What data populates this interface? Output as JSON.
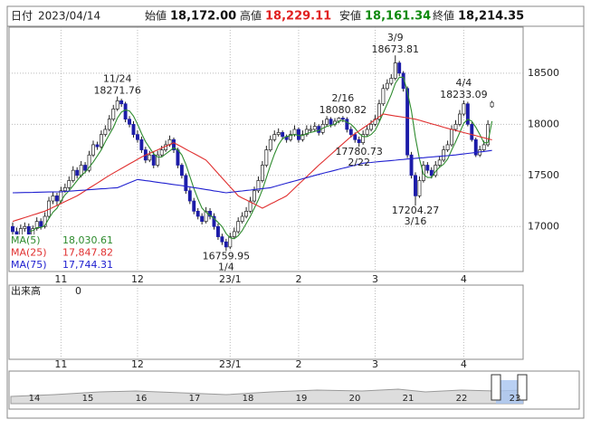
{
  "header": {
    "date_label": "日付",
    "date": "2023/04/14",
    "fields": [
      {
        "label": "始値",
        "value": "18,172.00",
        "color": "#111111"
      },
      {
        "label": "高値",
        "value": "18,229.11",
        "color": "#e02020"
      },
      {
        "label": "安値",
        "value": "18,161.34",
        "color": "#108a10"
      },
      {
        "label": "終値",
        "value": "18,214.35",
        "color": "#111111"
      }
    ]
  },
  "chart_data": {
    "type": "candlestick",
    "ylim": [
      16560,
      18950
    ],
    "yticks": [
      17000,
      17500,
      18000,
      18500
    ],
    "grid": true,
    "up_color": "#ffffff",
    "down_color": "#1c1ca8",
    "categories": [
      null,
      null,
      null,
      null,
      null,
      null,
      null,
      null,
      null,
      null,
      null,
      null,
      "11",
      null,
      null,
      null,
      null,
      null,
      null,
      null,
      null,
      null,
      null,
      null,
      null,
      null,
      null,
      null,
      null,
      null,
      null,
      "12",
      null,
      null,
      null,
      null,
      null,
      null,
      null,
      null,
      null,
      null,
      null,
      null,
      null,
      null,
      null,
      null,
      null,
      null,
      null,
      null,
      null,
      null,
      "23/1",
      null,
      null,
      null,
      null,
      null,
      null,
      null,
      null,
      null,
      null,
      null,
      null,
      null,
      null,
      null,
      null,
      "2",
      null,
      null,
      null,
      null,
      null,
      null,
      null,
      null,
      null,
      null,
      null,
      null,
      null,
      null,
      null,
      null,
      null,
      null,
      "3",
      null,
      null,
      null,
      null,
      null,
      null,
      null,
      null,
      null,
      null,
      null,
      null,
      null,
      null,
      null,
      null,
      null,
      null,
      null,
      null,
      null,
      "4",
      null,
      null,
      null,
      null,
      null,
      null,
      null
    ],
    "ohlc": [
      [
        17000,
        17040,
        16910,
        16950
      ],
      [
        16950,
        16990,
        16860,
        16900
      ],
      [
        16900,
        17020,
        16870,
        16980
      ],
      [
        16980,
        17040,
        16950,
        17000
      ],
      [
        17000,
        17030,
        16890,
        16920
      ],
      [
        16920,
        17010,
        16890,
        16980
      ],
      [
        16980,
        17090,
        16960,
        17050
      ],
      [
        17050,
        17080,
        16970,
        17000
      ],
      [
        17000,
        17140,
        16980,
        17100
      ],
      [
        17100,
        17290,
        17080,
        17250
      ],
      [
        17250,
        17340,
        17220,
        17300
      ],
      [
        17300,
        17330,
        17210,
        17250
      ],
      [
        17250,
        17390,
        17230,
        17350
      ],
      [
        17350,
        17420,
        17330,
        17380
      ],
      [
        17380,
        17490,
        17360,
        17450
      ],
      [
        17450,
        17590,
        17430,
        17550
      ],
      [
        17550,
        17580,
        17470,
        17500
      ],
      [
        17500,
        17640,
        17480,
        17600
      ],
      [
        17600,
        17630,
        17520,
        17550
      ],
      [
        17550,
        17740,
        17530,
        17700
      ],
      [
        17700,
        17840,
        17680,
        17800
      ],
      [
        17800,
        17830,
        17750,
        17780
      ],
      [
        17780,
        17940,
        17760,
        17900
      ],
      [
        17900,
        17990,
        17880,
        17950
      ],
      [
        17950,
        18090,
        17930,
        18050
      ],
      [
        18050,
        18190,
        18030,
        18150
      ],
      [
        18150,
        18271.76,
        18130,
        18230
      ],
      [
        18230,
        18250,
        18170,
        18200
      ],
      [
        18200,
        18220,
        18020,
        18050
      ],
      [
        18050,
        18080,
        17970,
        18000
      ],
      [
        18000,
        18030,
        17870,
        17900
      ],
      [
        17900,
        17940,
        17820,
        17850
      ],
      [
        17850,
        17880,
        17720,
        17750
      ],
      [
        17750,
        17780,
        17620,
        17650
      ],
      [
        17650,
        17740,
        17630,
        17700
      ],
      [
        17700,
        17730,
        17570,
        17600
      ],
      [
        17600,
        17740,
        17580,
        17700
      ],
      [
        17700,
        17790,
        17680,
        17750
      ],
      [
        17750,
        17840,
        17730,
        17800
      ],
      [
        17800,
        17890,
        17780,
        17850
      ],
      [
        17850,
        17870,
        17720,
        17750
      ],
      [
        17750,
        17770,
        17570,
        17600
      ],
      [
        17600,
        17620,
        17470,
        17500
      ],
      [
        17500,
        17520,
        17320,
        17350
      ],
      [
        17350,
        17380,
        17220,
        17250
      ],
      [
        17250,
        17280,
        17120,
        17150
      ],
      [
        17150,
        17180,
        17070,
        17100
      ],
      [
        17100,
        17130,
        17020,
        17050
      ],
      [
        17050,
        17190,
        17030,
        17150
      ],
      [
        17150,
        17180,
        17070,
        17100
      ],
      [
        17100,
        17130,
        16970,
        17000
      ],
      [
        17000,
        17030,
        16870,
        16900
      ],
      [
        16900,
        16930,
        16820,
        16850
      ],
      [
        16850,
        16880,
        16759.95,
        16800
      ],
      [
        16800,
        16940,
        16780,
        16900
      ],
      [
        16900,
        16990,
        16880,
        16950
      ],
      [
        16950,
        17090,
        16930,
        17050
      ],
      [
        17050,
        17140,
        17030,
        17100
      ],
      [
        17100,
        17190,
        17080,
        17150
      ],
      [
        17150,
        17290,
        17130,
        17250
      ],
      [
        17250,
        17390,
        17230,
        17350
      ],
      [
        17350,
        17490,
        17330,
        17450
      ],
      [
        17450,
        17640,
        17430,
        17600
      ],
      [
        17600,
        17790,
        17580,
        17750
      ],
      [
        17750,
        17890,
        17730,
        17850
      ],
      [
        17850,
        17940,
        17830,
        17900
      ],
      [
        17900,
        17960,
        17880,
        17920
      ],
      [
        17920,
        17940,
        17850,
        17880
      ],
      [
        17880,
        17900,
        17820,
        17850
      ],
      [
        17850,
        17940,
        17830,
        17900
      ],
      [
        17900,
        17990,
        17880,
        17950
      ],
      [
        17950,
        17970,
        17820,
        17850
      ],
      [
        17850,
        17940,
        17830,
        17900
      ],
      [
        17900,
        17990,
        17880,
        17950
      ],
      [
        17940,
        17990,
        17920,
        17950
      ],
      [
        17950,
        18020,
        17930,
        17980
      ],
      [
        17980,
        18000,
        17890,
        17920
      ],
      [
        17920,
        18040,
        17900,
        18000
      ],
      [
        18000,
        18080,
        17980,
        18050
      ],
      [
        18050,
        18070,
        17970,
        18000
      ],
      [
        18000,
        18060,
        17980,
        18030
      ],
      [
        18030,
        18070,
        18010,
        18060
      ],
      [
        18060,
        18080.82,
        18020,
        18050
      ],
      [
        18050,
        18070,
        17920,
        17950
      ],
      [
        17950,
        17980,
        17870,
        17900
      ],
      [
        17900,
        17920,
        17820,
        17850
      ],
      [
        17850,
        17880,
        17780.73,
        17820
      ],
      [
        17820,
        17940,
        17800,
        17900
      ],
      [
        17900,
        17990,
        17880,
        17950
      ],
      [
        17950,
        18040,
        17930,
        18000
      ],
      [
        18000,
        18090,
        17980,
        18050
      ],
      [
        18050,
        18240,
        18030,
        18200
      ],
      [
        18200,
        18390,
        18180,
        18350
      ],
      [
        18350,
        18440,
        18330,
        18400
      ],
      [
        18400,
        18490,
        18380,
        18450
      ],
      [
        18450,
        18673.81,
        18430,
        18600
      ],
      [
        18600,
        18620,
        18470,
        18500
      ],
      [
        18500,
        18520,
        18320,
        18350
      ],
      [
        18350,
        18370,
        17670,
        17700
      ],
      [
        17700,
        17730,
        17470,
        17500
      ],
      [
        17500,
        17530,
        17204.27,
        17300
      ],
      [
        17300,
        17490,
        17280,
        17450
      ],
      [
        17450,
        17640,
        17430,
        17600
      ],
      [
        17600,
        17630,
        17520,
        17550
      ],
      [
        17550,
        17580,
        17470,
        17500
      ],
      [
        17500,
        17640,
        17480,
        17600
      ],
      [
        17600,
        17690,
        17580,
        17650
      ],
      [
        17650,
        17790,
        17630,
        17750
      ],
      [
        17750,
        17840,
        17730,
        17800
      ],
      [
        17800,
        17990,
        17780,
        17950
      ],
      [
        17950,
        18040,
        17930,
        18000
      ],
      [
        18000,
        18140,
        17980,
        18100
      ],
      [
        18100,
        18233.09,
        18080,
        18200
      ],
      [
        18200,
        18220,
        17980,
        18000
      ],
      [
        18000,
        18020,
        17830,
        17850
      ],
      [
        17850,
        17870,
        17680,
        17700
      ],
      [
        17700,
        17790,
        17680,
        17750
      ],
      [
        17750,
        17840,
        17730,
        17800
      ],
      [
        17800,
        18040,
        17780,
        18000
      ],
      [
        18172,
        18229.11,
        18161.34,
        18214.35
      ]
    ],
    "series": [
      {
        "name": "MA(5)",
        "color": "#2e8b2e",
        "last_label": "18,030.61",
        "values": [
          null,
          null,
          null,
          null,
          16950,
          16960,
          16990,
          16990,
          17010,
          17080,
          17140,
          17180,
          17250,
          17310,
          17350,
          17400,
          17450,
          17500,
          17530,
          17580,
          17630,
          17690,
          17750,
          17830,
          17900,
          17970,
          18060,
          18120,
          18140,
          18130,
          18080,
          18000,
          17910,
          17830,
          17770,
          17710,
          17680,
          17680,
          17710,
          17740,
          17770,
          17750,
          17700,
          17610,
          17490,
          17370,
          17270,
          17180,
          17140,
          17110,
          17080,
          17040,
          17000,
          16930,
          16890,
          16880,
          16910,
          16960,
          17030,
          17100,
          17180,
          17260,
          17360,
          17480,
          17600,
          17710,
          17800,
          17860,
          17880,
          17890,
          17900,
          17890,
          17890,
          17910,
          17920,
          17930,
          17940,
          17960,
          17980,
          17990,
          18000,
          18030,
          18040,
          18020,
          18000,
          17960,
          17910,
          17880,
          17880,
          17900,
          17940,
          18020,
          18110,
          18200,
          18290,
          18400,
          18460,
          18460,
          18320,
          18130,
          17870,
          17660,
          17510,
          17480,
          17480,
          17540,
          17580,
          17610,
          17660,
          17750,
          17830,
          17920,
          18010,
          18050,
          18030,
          17970,
          17900,
          17820,
          17820,
          18030.61
        ]
      },
      {
        "name": "MA(25)",
        "color": "#e03030",
        "last_label": "17,847.82",
        "values": [
          17050,
          17063,
          17075,
          17088,
          17100,
          17113,
          17125,
          17138,
          17150,
          17169,
          17188,
          17206,
          17225,
          17244,
          17263,
          17281,
          17300,
          17325,
          17350,
          17375,
          17400,
          17425,
          17450,
          17475,
          17500,
          17523,
          17545,
          17568,
          17590,
          17613,
          17635,
          17658,
          17680,
          17698,
          17715,
          17733,
          17750,
          17768,
          17785,
          17803,
          17820,
          17799,
          17778,
          17756,
          17735,
          17714,
          17693,
          17671,
          17650,
          17606,
          17563,
          17519,
          17475,
          17431,
          17388,
          17344,
          17300,
          17280,
          17260,
          17240,
          17220,
          17200,
          17180,
          17200,
          17220,
          17240,
          17260,
          17280,
          17300,
          17338,
          17375,
          17413,
          17450,
          17488,
          17525,
          17563,
          17600,
          17635,
          17670,
          17705,
          17740,
          17775,
          17810,
          17845,
          17880,
          17908,
          17935,
          17963,
          17990,
          18018,
          18045,
          18073,
          18100,
          18094,
          18088,
          18081,
          18075,
          18069,
          18063,
          18056,
          18050,
          18039,
          18028,
          18016,
          18005,
          17994,
          17983,
          17971,
          17960,
          17950,
          17940,
          17929,
          17919,
          17909,
          17899,
          17889,
          17878,
          17868,
          17858,
          17847.82
        ]
      },
      {
        "name": "MA(75)",
        "color": "#2020d0",
        "last_label": "17,744.31",
        "values": [
          17330,
          17331,
          17332,
          17333,
          17333,
          17334,
          17335,
          17336,
          17337,
          17338,
          17338,
          17339,
          17340,
          17343,
          17346,
          17349,
          17351,
          17354,
          17357,
          17360,
          17363,
          17366,
          17369,
          17371,
          17374,
          17377,
          17380,
          17396,
          17412,
          17428,
          17444,
          17460,
          17455,
          17449,
          17444,
          17438,
          17433,
          17427,
          17422,
          17416,
          17411,
          17405,
          17400,
          17394,
          17387,
          17381,
          17375,
          17368,
          17362,
          17356,
          17349,
          17343,
          17336,
          17330,
          17335,
          17339,
          17344,
          17348,
          17353,
          17357,
          17362,
          17366,
          17371,
          17375,
          17380,
          17391,
          17402,
          17413,
          17424,
          17435,
          17445,
          17456,
          17467,
          17478,
          17489,
          17500,
          17510,
          17520,
          17530,
          17540,
          17550,
          17560,
          17570,
          17580,
          17590,
          17600,
          17610,
          17620,
          17624,
          17627,
          17631,
          17635,
          17638,
          17642,
          17645,
          17649,
          17653,
          17656,
          17660,
          17663,
          17667,
          17670,
          17673,
          17677,
          17680,
          17683,
          17687,
          17690,
          17693,
          17697,
          17700,
          17705,
          17710,
          17715,
          17720,
          17725,
          17730,
          17734,
          17739,
          17744.31
        ]
      }
    ],
    "annotations": [
      {
        "date": "11/24",
        "price": 18271.76
      },
      {
        "date": "1/4",
        "price": 16759.95
      },
      {
        "date": "2/16",
        "price": 18080.82
      },
      {
        "date": "2/22",
        "price": 17780.73
      },
      {
        "date": "3/9",
        "price": 18673.81
      },
      {
        "date": "3/16",
        "price": 17204.27
      },
      {
        "date": "4/4",
        "price": 18233.09
      }
    ],
    "volume": {
      "label": "出来高",
      "tick": 0
    },
    "navigator": {
      "labels": [
        14,
        15,
        16,
        17,
        18,
        19,
        20,
        21,
        22,
        23
      ]
    }
  }
}
